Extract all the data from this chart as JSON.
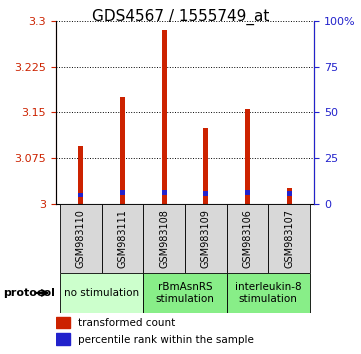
{
  "title": "GDS4567 / 1555749_at",
  "samples": [
    "GSM983110",
    "GSM983111",
    "GSM983108",
    "GSM983109",
    "GSM983106",
    "GSM983107"
  ],
  "transformed_count": [
    3.095,
    3.175,
    3.285,
    3.125,
    3.155,
    3.025
  ],
  "percentile_rank_bottom": [
    3.01,
    3.014,
    3.014,
    3.012,
    3.014,
    3.012
  ],
  "percentile_rank_height": [
    0.008,
    0.008,
    0.008,
    0.008,
    0.008,
    0.008
  ],
  "bar_bottom": 3.0,
  "bar_width": 0.12,
  "ylim": [
    3.0,
    3.3
  ],
  "yticks": [
    3.0,
    3.075,
    3.15,
    3.225,
    3.3
  ],
  "ytick_labels": [
    "3",
    "3.075",
    "3.15",
    "3.225",
    "3.3"
  ],
  "y2lim": [
    0,
    100
  ],
  "y2ticks": [
    0,
    25,
    50,
    75,
    100
  ],
  "y2ticklabels": [
    "0",
    "25",
    "50",
    "75",
    "100%"
  ],
  "red_color": "#cc2200",
  "blue_color": "#2222cc",
  "group_labels": [
    "no stimulation",
    "rBmAsnRS\nstimulation",
    "interleukin-8\nstimulation"
  ],
  "group_ranges": [
    [
      0,
      1
    ],
    [
      2,
      3
    ],
    [
      4,
      5
    ]
  ],
  "group_colors": [
    "#ccffcc",
    "#88ee88",
    "#88ee88"
  ],
  "protocol_label": "protocol",
  "legend_red": "transformed count",
  "legend_blue": "percentile rank within the sample",
  "title_fontsize": 11,
  "tick_fontsize": 8,
  "sample_label_fontsize": 7,
  "group_label_fontsize": 7.5,
  "legend_fontsize": 7.5
}
